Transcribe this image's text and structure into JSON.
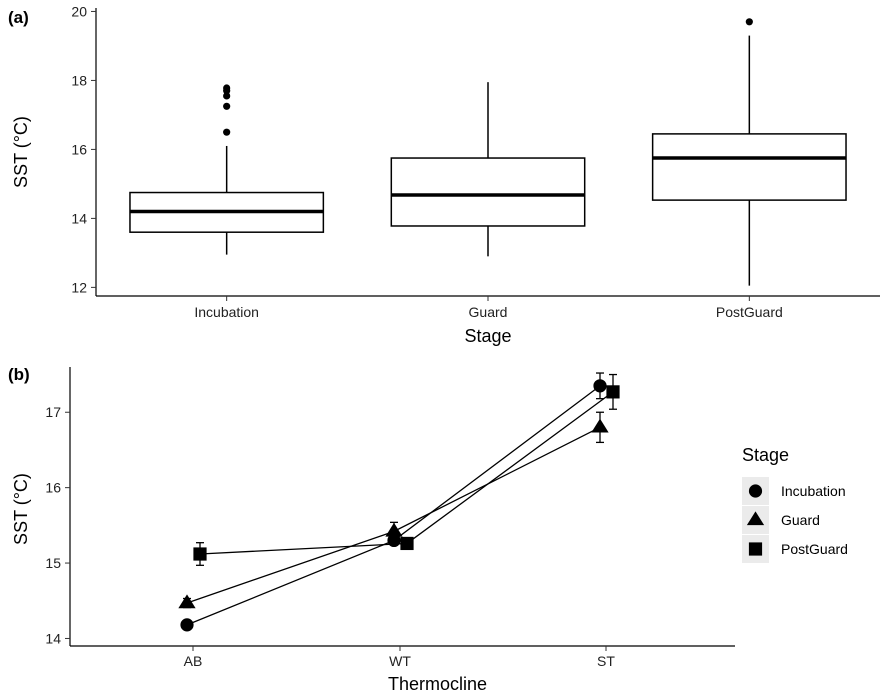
{
  "panel_a_label": "(a)",
  "panel_b_label": "(b)",
  "chart_data": [
    {
      "type": "box",
      "panel": "(a)",
      "xlabel": "Stage",
      "ylabel": "SST (°C)",
      "categories": [
        "Incubation",
        "Guard",
        "PostGuard"
      ],
      "ylim": [
        11.75,
        20.1
      ],
      "yticks": [
        "12",
        "14",
        "16",
        "18",
        "20"
      ],
      "boxes": [
        {
          "category": "Incubation",
          "whisker_low": 12.95,
          "q1": 13.6,
          "median": 14.2,
          "q3": 14.75,
          "whisker_high": 16.1,
          "outliers": [
            16.5,
            17.25,
            17.55,
            17.7,
            17.78
          ]
        },
        {
          "category": "Guard",
          "whisker_low": 12.9,
          "q1": 13.78,
          "median": 14.68,
          "q3": 15.75,
          "whisker_high": 17.95,
          "outliers": []
        },
        {
          "category": "PostGuard",
          "whisker_low": 12.05,
          "q1": 14.53,
          "median": 15.75,
          "q3": 16.45,
          "whisker_high": 19.3,
          "outliers": [
            19.7
          ]
        }
      ],
      "grid": false
    },
    {
      "type": "line",
      "panel": "(b)",
      "xlabel": "Thermocline",
      "ylabel": "SST (°C)",
      "categories": [
        "AB",
        "WT",
        "ST"
      ],
      "ylim": [
        13.9,
        17.6
      ],
      "yticks": [
        "14",
        "15",
        "16",
        "17"
      ],
      "legend_title": "Stage",
      "legend_position": "right",
      "series": [
        {
          "name": "Incubation",
          "marker": "circle",
          "values": [
            14.18,
            15.3,
            17.35
          ],
          "errors": [
            0.05,
            0.06,
            0.17
          ]
        },
        {
          "name": "Guard",
          "marker": "triangle",
          "values": [
            14.47,
            15.42,
            16.8
          ],
          "errors": [
            0.06,
            0.12,
            0.2
          ]
        },
        {
          "name": "PostGuard",
          "marker": "square",
          "values": [
            15.12,
            15.26,
            17.27
          ],
          "errors": [
            0.15,
            0.06,
            0.23
          ]
        }
      ],
      "grid": false
    }
  ]
}
